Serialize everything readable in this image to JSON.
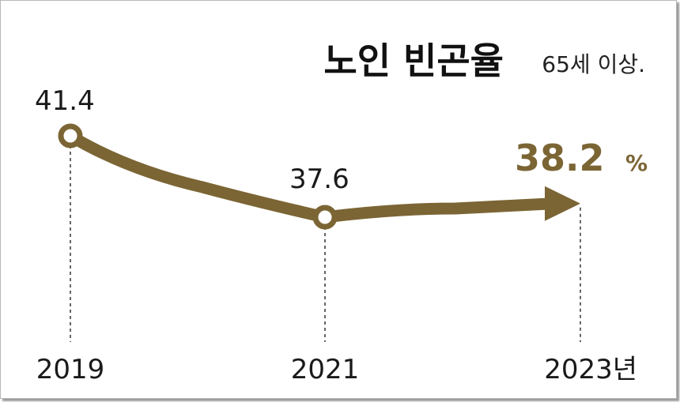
{
  "chart_data": {
    "type": "line",
    "title": "노인 빈곤율",
    "subtitle": "65세 이상.",
    "x": [
      "2019",
      "2021",
      "2023년"
    ],
    "values": [
      41.4,
      37.6,
      38.2
    ],
    "data_labels": [
      "41.4",
      "37.6",
      "38.2"
    ],
    "highlight_unit": "%",
    "grid": false,
    "legend": "none"
  },
  "colors": {
    "line": "#7b6534",
    "highlight": "#7b6534",
    "marker_fill": "#ffffff",
    "guide": "#333333"
  }
}
